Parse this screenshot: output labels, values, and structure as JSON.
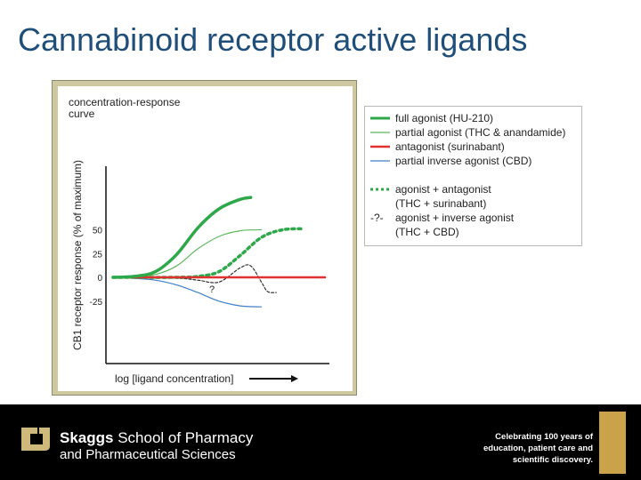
{
  "slide": {
    "title": "Cannabinoid receptor active ligands"
  },
  "chart_data": {
    "type": "line",
    "title": "concentration-response curve",
    "xlabel": "log [ligand concentration]",
    "ylabel": "CB1 receptor response (% of maximum)",
    "yticks": [
      "50",
      "25",
      "0",
      "-25"
    ],
    "ylim": [
      -40,
      90
    ],
    "xlim": [
      0,
      10
    ],
    "grid": false,
    "legend_position": "right",
    "annotation": "?",
    "series": [
      {
        "name": "full agonist (HU-210)",
        "color": "#2ea84a",
        "style": "solid-thick",
        "x": [
          0,
          1,
          2,
          3,
          4,
          5,
          6,
          6.5
        ],
        "y": [
          0,
          1,
          6,
          24,
          52,
          72,
          82,
          84
        ]
      },
      {
        "name": "partial agonist (THC & anandamide)",
        "color": "#5cb85c",
        "style": "solid-thin",
        "x": [
          0,
          1,
          2,
          3,
          4,
          5,
          6,
          7
        ],
        "y": [
          0,
          1,
          3,
          12,
          30,
          43,
          49,
          50
        ]
      },
      {
        "name": "antagonist (surinabant)",
        "color": "#e03030",
        "style": "solid-medium",
        "x": [
          0,
          10
        ],
        "y": [
          0,
          0
        ]
      },
      {
        "name": "partial inverse agonist (CBD)",
        "color": "#3f7fc8",
        "style": "solid-thin",
        "x": [
          0,
          1,
          2,
          3,
          4,
          5,
          6,
          7
        ],
        "y": [
          0,
          -1,
          -3,
          -8,
          -16,
          -25,
          -30,
          -31
        ]
      },
      {
        "name": "agonist + antagonist",
        "name_line2": "(THC + surinabant)",
        "color": "#2ea84a",
        "style": "dotted-thick",
        "x": [
          0,
          3,
          4,
          5,
          6,
          7,
          8,
          9
        ],
        "y": [
          0,
          0,
          1,
          6,
          23,
          42,
          50,
          51
        ]
      },
      {
        "name": "agonist + inverse agonist",
        "name_line2": "(THC + CBD)",
        "legend_marker": "-?-",
        "color": "#222222",
        "style": "dashed-thin",
        "x": [
          0,
          3,
          4,
          5,
          6,
          6.5,
          7,
          7.3,
          7.7
        ],
        "y": [
          0,
          -1,
          -3,
          -5,
          10,
          12,
          -5,
          -15,
          -16
        ]
      }
    ]
  },
  "footer": {
    "school_name_bold": "Skaggs",
    "school_name_rest": " School of Pharmacy",
    "school_line2": "and Pharmaceutical Sciences",
    "tagline_1": "Celebrating 100 years of",
    "tagline_2": "education, patient care and",
    "tagline_3": "scientific discovery.",
    "colors": {
      "background": "#000000",
      "logo_gold": "#cfb87c",
      "badge": "#c9a24a"
    }
  }
}
